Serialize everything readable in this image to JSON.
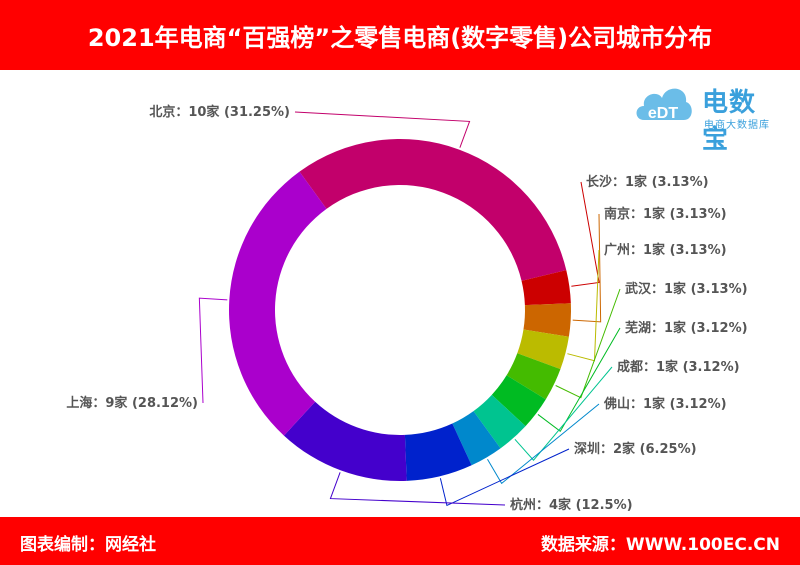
{
  "header": {
    "title": "2021年电商“百强榜”之零售电商(数字零售)公司城市分布"
  },
  "logo": {
    "brand": "电数宝",
    "subtitle": "电商大数据库",
    "badge": "eDT"
  },
  "footer": {
    "left": "图表编制：网经社",
    "right": "数据来源：WWW.100EC.CN"
  },
  "colors": {
    "banner": "#ff0000",
    "logo": "#3aa0dc"
  },
  "chart_data": {
    "type": "pie",
    "style": "donut",
    "labels": [
      "北京",
      "长沙",
      "南京",
      "广州",
      "武汉",
      "芜湖",
      "成都",
      "佛山",
      "深圳",
      "杭州",
      "上海"
    ],
    "values": [
      10,
      1,
      1,
      1,
      1,
      1,
      1,
      1,
      2,
      4,
      9
    ],
    "unit": "家",
    "percents": [
      "31.25%",
      "3.13%",
      "3.13%",
      "3.13%",
      "3.13%",
      "3.12%",
      "3.12%",
      "3.12%",
      "6.25%",
      "12.5%",
      "28.12%"
    ],
    "slice_labels": [
      "北京：10家 (31.25%)",
      "长沙：1家 (3.13%)",
      "南京：1家 (3.13%)",
      "广州：1家 (3.13%)",
      "武汉：1家 (3.13%)",
      "芜湖：1家 (3.12%)",
      "成都：1家 (3.12%)",
      "佛山：1家 (3.12%)",
      "深圳：2家 (6.25%)",
      "杭州：4家 (12.5%)",
      "上海：9家 (28.12%)"
    ],
    "colors": [
      "#c2006b",
      "#cc0000",
      "#cc6600",
      "#bbbb00",
      "#44bb00",
      "#00bb22",
      "#00c490",
      "#0088cc",
      "#0022cc",
      "#4400cc",
      "#aa00cc"
    ],
    "legend": "none"
  }
}
